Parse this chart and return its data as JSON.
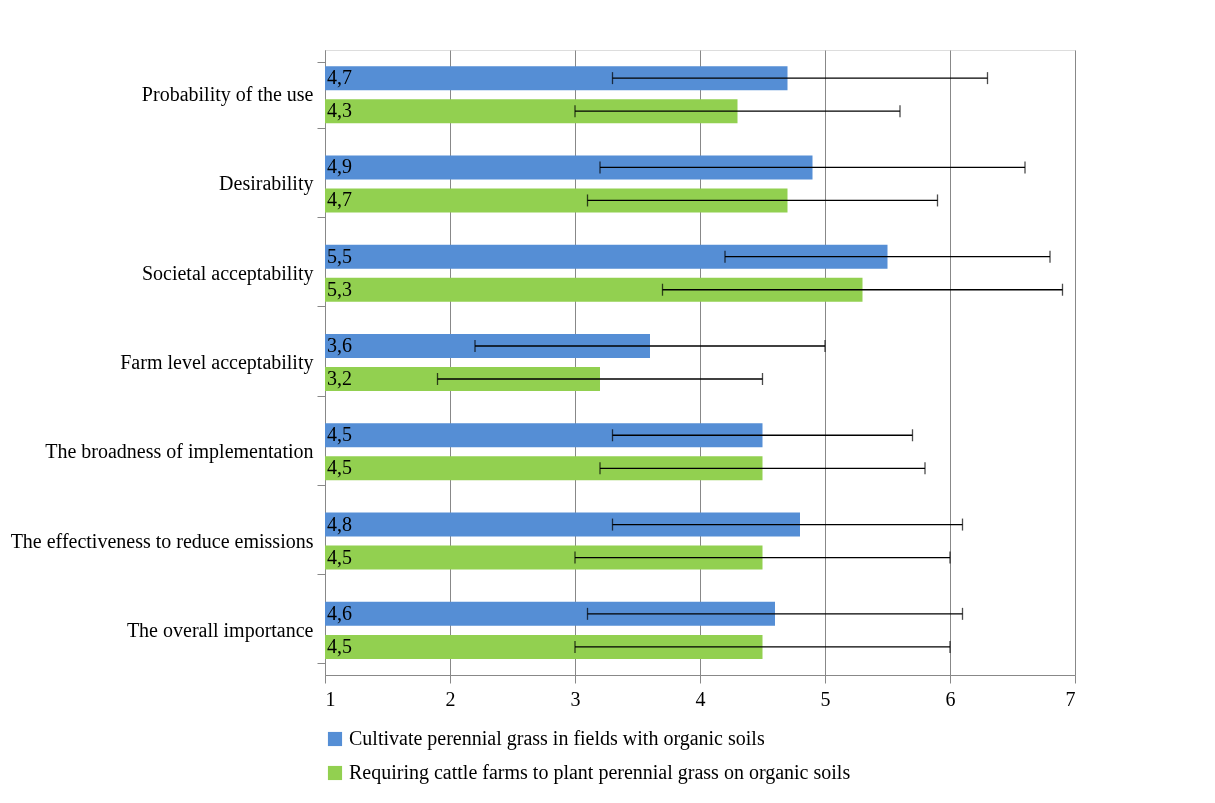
{
  "chart_data": {
    "type": "bar",
    "orientation": "horizontal",
    "categories": [
      "Probability of the use",
      "Desirability",
      "Societal acceptability",
      "Farm level acceptability",
      "The broadness of implementation",
      "The effectiveness to reduce emissions",
      "The overall importance"
    ],
    "series": [
      {
        "name": "Cultivate perennial grass in fields with organic soils",
        "color": "#558ed5",
        "values": [
          4.7,
          4.9,
          5.5,
          3.6,
          4.5,
          4.8,
          4.6
        ],
        "value_labels": [
          "4,7",
          "4,9",
          "5,5",
          "3,6",
          "4,5",
          "4,8",
          "4,6"
        ],
        "errors": [
          [
            3.3,
            6.3
          ],
          [
            3.2,
            6.6
          ],
          [
            4.2,
            6.8
          ],
          [
            2.2,
            5.0
          ],
          [
            3.3,
            5.7
          ],
          [
            3.3,
            6.1
          ],
          [
            3.1,
            6.1
          ]
        ]
      },
      {
        "name": "Requiring cattle farms to plant perennial grass on organic soils",
        "color": "#92d050",
        "values": [
          4.3,
          4.7,
          5.3,
          3.2,
          4.5,
          4.5,
          4.5
        ],
        "value_labels": [
          "4,3",
          "4,7",
          "5,3",
          "3,2",
          "4,5",
          "4,5",
          "4,5"
        ],
        "errors": [
          [
            3.0,
            5.6
          ],
          [
            3.1,
            5.9
          ],
          [
            3.7,
            6.9
          ],
          [
            1.9,
            4.5
          ],
          [
            3.2,
            5.8
          ],
          [
            3.0,
            6.0
          ],
          [
            3.0,
            6.0
          ]
        ]
      }
    ],
    "xlim": [
      1,
      7
    ],
    "xticks": [
      1,
      2,
      3,
      4,
      5,
      6,
      7
    ],
    "grid": "x",
    "legend": "bottom"
  }
}
